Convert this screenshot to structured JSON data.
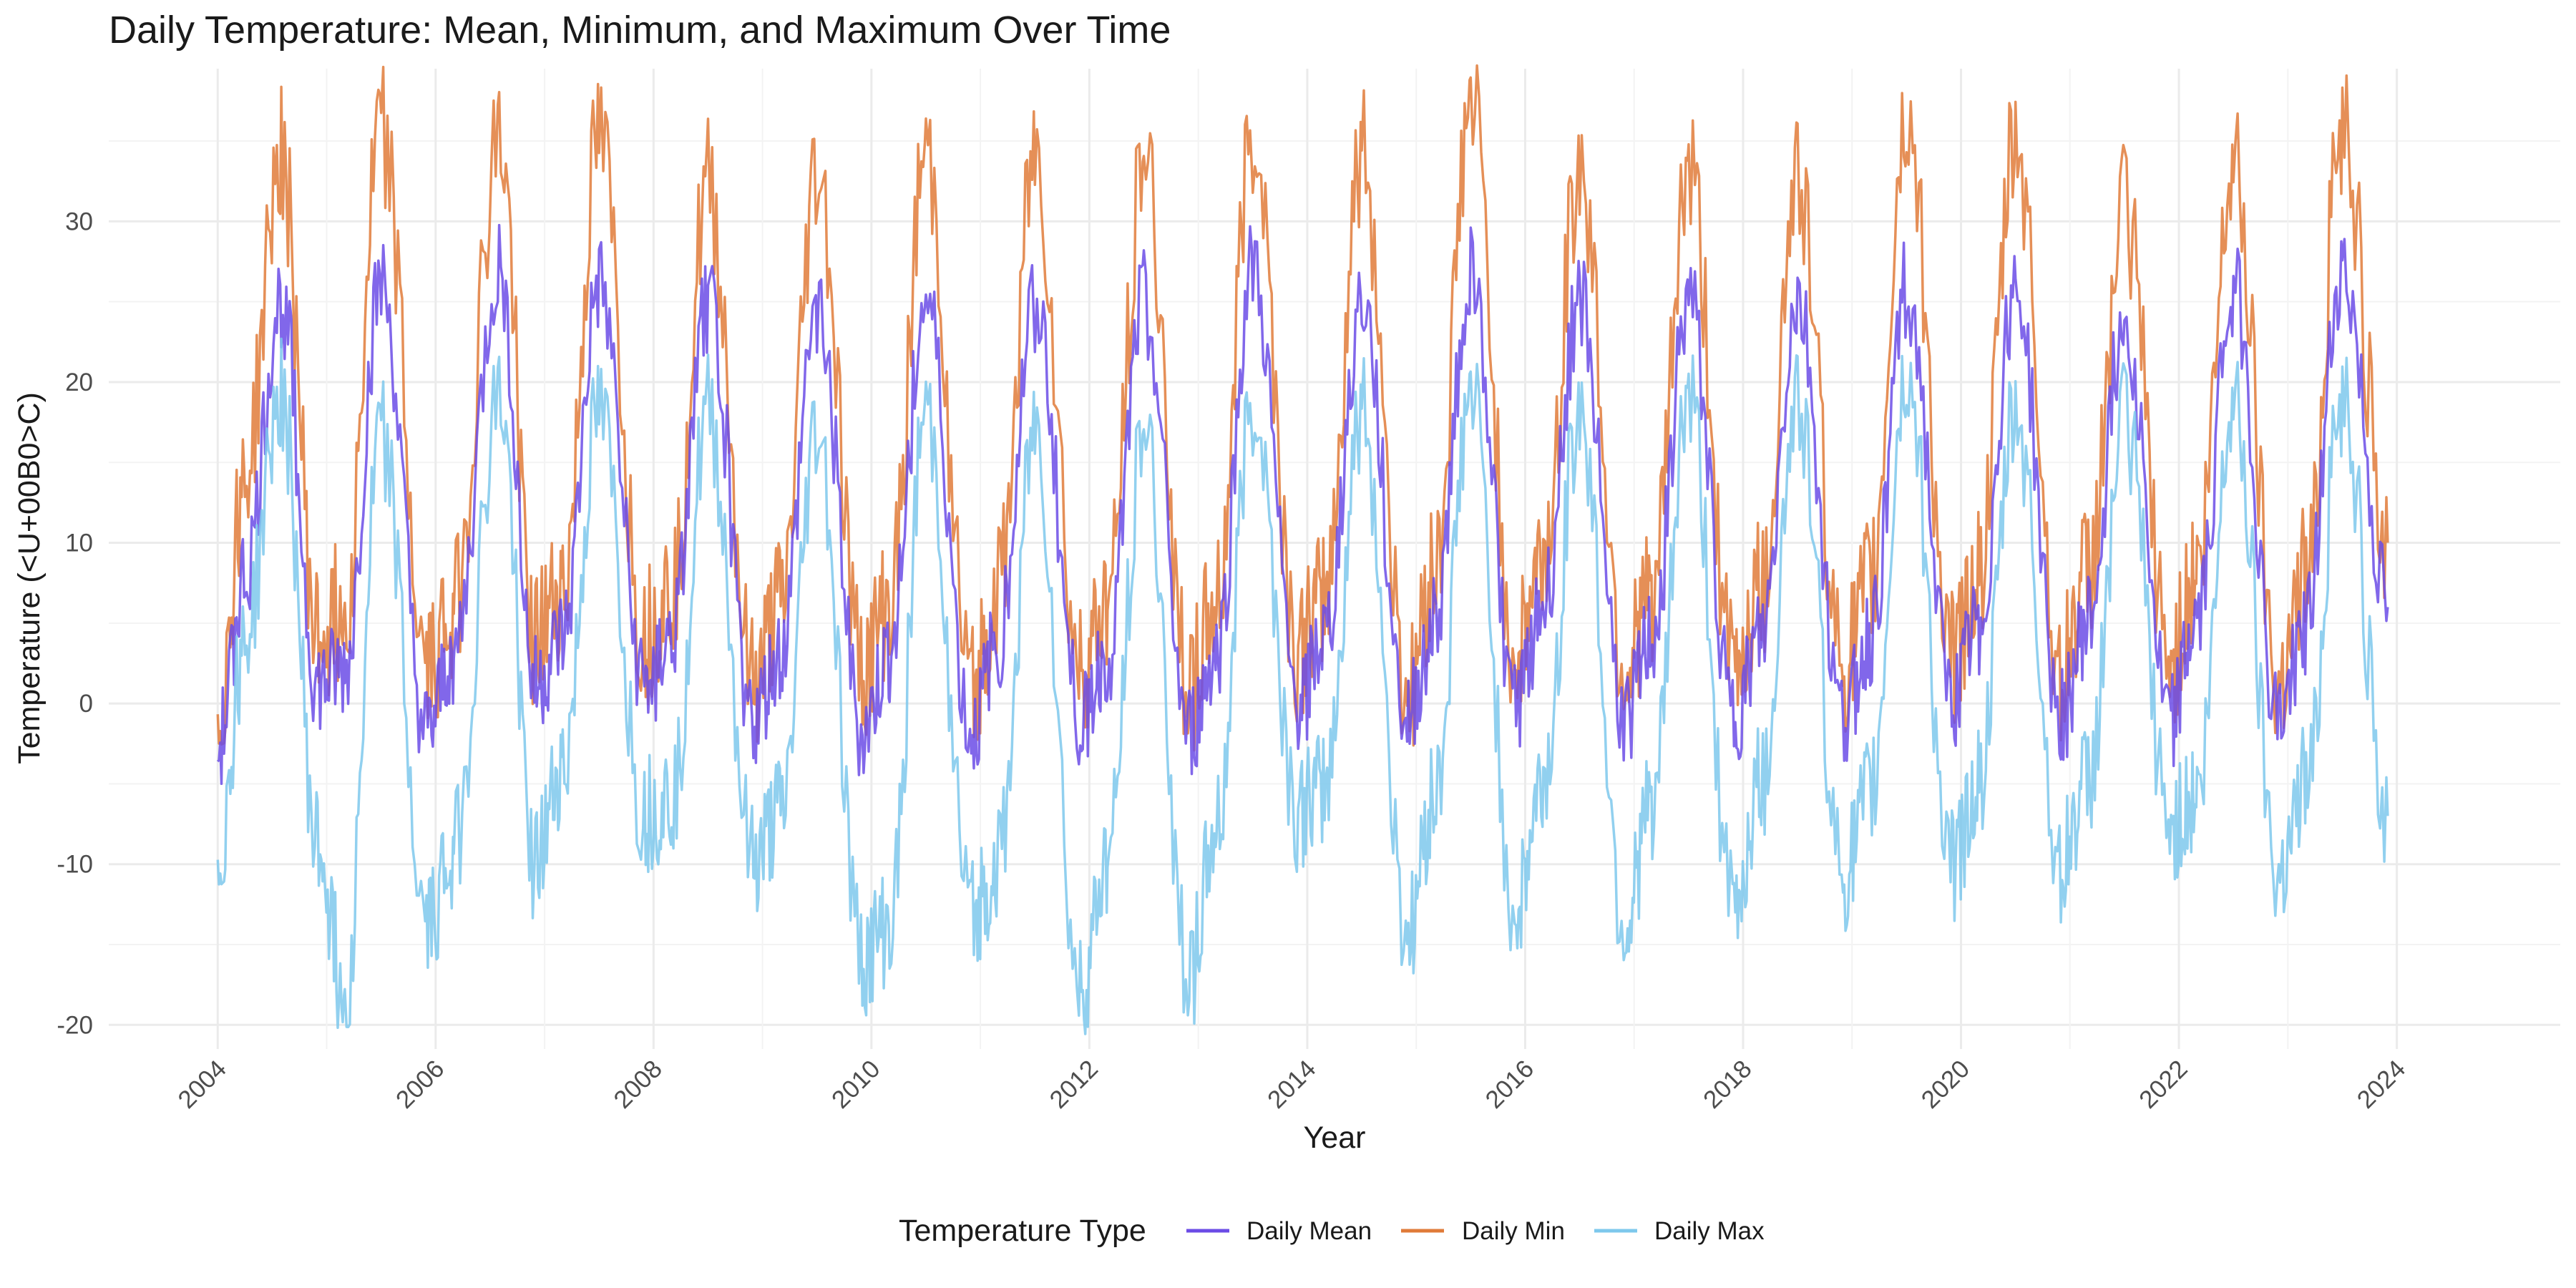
{
  "chart_data": {
    "type": "line",
    "title": "Daily Temperature: Mean, Minimum, and Maximum Over Time",
    "xlabel": "Year",
    "ylabel": "Temperature (<U+00B0>C)",
    "x_range": [
      "2003-01-01",
      "2025-07-01"
    ],
    "ylim": [
      -21.5,
      39.5
    ],
    "x_ticks": [
      "2004",
      "2006",
      "2008",
      "2010",
      "2012",
      "2014",
      "2016",
      "2018",
      "2020",
      "2022",
      "2024"
    ],
    "y_ticks": [
      -20,
      -10,
      0,
      10,
      20,
      30
    ],
    "grid": true,
    "legend": {
      "title": "Temperature Type",
      "position": "bottom",
      "items": [
        "Daily Mean",
        "Daily Min",
        "Daily Max"
      ]
    },
    "series": [
      {
        "name": "Daily Min",
        "color": "#e07b39",
        "x": [
          "2004-01",
          "2004-04",
          "2004-08",
          "2004-12",
          "2005-03",
          "2005-07",
          "2005-12",
          "2006-03",
          "2006-08",
          "2006-12",
          "2007-03",
          "2007-07",
          "2007-12",
          "2008-03",
          "2008-07",
          "2008-12",
          "2009-03",
          "2009-07",
          "2009-12",
          "2010-03",
          "2010-07",
          "2010-12",
          "2011-03",
          "2011-07",
          "2011-12",
          "2012-03",
          "2012-07",
          "2012-12",
          "2013-03",
          "2013-07",
          "2013-12",
          "2014-03",
          "2014-07",
          "2014-12",
          "2015-03",
          "2015-07",
          "2015-12",
          "2016-03",
          "2016-07",
          "2016-12",
          "2017-03",
          "2017-07",
          "2017-12",
          "2018-03",
          "2018-07",
          "2018-12",
          "2019-03",
          "2019-07",
          "2019-12",
          "2020-03",
          "2020-07",
          "2020-12",
          "2021-03",
          "2021-07",
          "2021-12",
          "2022-03",
          "2022-07",
          "2022-12",
          "2023-03",
          "2023-07",
          "2023-12"
        ],
        "values": [
          -1,
          14,
          34,
          4,
          6,
          36,
          2,
          6,
          35,
          4,
          7,
          35,
          4,
          7,
          32,
          1,
          6,
          33,
          2,
          6,
          34,
          1,
          7,
          34,
          2,
          6,
          34,
          1,
          6,
          36,
          3,
          7,
          34,
          1,
          8,
          37,
          3,
          9,
          33,
          2,
          7,
          33,
          2,
          7,
          33,
          2,
          7,
          36,
          3,
          8,
          35,
          2,
          8,
          31,
          2,
          8,
          34,
          2,
          8,
          36,
          10
        ]
      },
      {
        "name": "Daily Mean",
        "color": "#6b4ce6",
        "x": [
          "2004-01",
          "2004-04",
          "2004-08",
          "2004-12",
          "2005-03",
          "2005-07",
          "2005-12",
          "2006-03",
          "2006-08",
          "2006-12",
          "2007-03",
          "2007-07",
          "2007-12",
          "2008-03",
          "2008-07",
          "2008-12",
          "2009-03",
          "2009-07",
          "2009-12",
          "2010-03",
          "2010-07",
          "2010-12",
          "2011-03",
          "2011-07",
          "2011-12",
          "2012-03",
          "2012-07",
          "2012-12",
          "2013-03",
          "2013-07",
          "2013-12",
          "2014-03",
          "2014-07",
          "2014-12",
          "2015-03",
          "2015-07",
          "2015-12",
          "2016-03",
          "2016-07",
          "2016-12",
          "2017-03",
          "2017-07",
          "2017-12",
          "2018-03",
          "2018-07",
          "2018-12",
          "2019-03",
          "2019-07",
          "2019-12",
          "2020-03",
          "2020-07",
          "2020-12",
          "2021-03",
          "2021-07",
          "2021-12",
          "2022-03",
          "2022-07",
          "2022-12",
          "2023-03",
          "2023-07",
          "2023-12"
        ],
        "values": [
          -3,
          8,
          25,
          1,
          2,
          26,
          -2,
          3,
          27,
          1,
          4,
          26,
          1,
          4,
          25,
          -1,
          3,
          25,
          -2,
          3,
          25,
          -2,
          4,
          25,
          -1,
          3,
          25,
          -2,
          3,
          27,
          0,
          4,
          25,
          -1,
          5,
          27,
          0,
          6,
          25,
          -1,
          4,
          25,
          -1,
          4,
          25,
          -1,
          4,
          26,
          0,
          5,
          26,
          -1,
          5,
          24,
          -1,
          5,
          26,
          -1,
          5,
          27,
          6
        ]
      },
      {
        "name": "Daily Max",
        "color": "#7ec8ec",
        "x": [
          "2004-01",
          "2004-04",
          "2004-08",
          "2004-12",
          "2005-03",
          "2005-07",
          "2005-12",
          "2006-03",
          "2006-08",
          "2006-12",
          "2007-03",
          "2007-07",
          "2007-12",
          "2008-03",
          "2008-07",
          "2008-12",
          "2009-03",
          "2009-07",
          "2009-12",
          "2010-03",
          "2010-07",
          "2010-12",
          "2011-03",
          "2011-07",
          "2011-12",
          "2012-03",
          "2012-07",
          "2012-12",
          "2013-03",
          "2013-07",
          "2013-12",
          "2014-03",
          "2014-07",
          "2014-12",
          "2015-03",
          "2015-07",
          "2015-12",
          "2016-03",
          "2016-07",
          "2016-12",
          "2017-03",
          "2017-07",
          "2017-12",
          "2018-03",
          "2018-07",
          "2018-12",
          "2019-03",
          "2019-07",
          "2019-12",
          "2020-03",
          "2020-07",
          "2020-12",
          "2021-03",
          "2021-07",
          "2021-12",
          "2022-03",
          "2022-07",
          "2022-12",
          "2023-03",
          "2023-07",
          "2023-12"
        ],
        "values": [
          -10,
          4,
          19,
          -9,
          -18,
          17,
          -14,
          -9,
          19,
          -10,
          -4,
          18,
          -7,
          -6,
          18,
          -10,
          -7,
          17,
          -16,
          -14,
          18,
          -13,
          -10,
          17,
          -18,
          -10,
          17,
          -17,
          -8,
          19,
          -7,
          -5,
          18,
          -14,
          -6,
          19,
          -13,
          -5,
          18,
          -14,
          -6,
          19,
          -13,
          -5,
          19,
          -11,
          -6,
          20,
          -10,
          -5,
          18,
          -10,
          -5,
          18,
          -8,
          -6,
          19,
          -10,
          -5,
          19,
          -7
        ]
      }
    ]
  }
}
